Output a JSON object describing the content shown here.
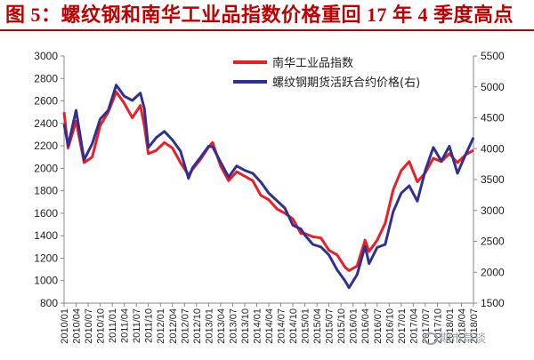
{
  "title": "图 5：螺纹钢和南华工业品指数价格重回 17 年 4 季度高点",
  "watermark": "期市草谈",
  "colors": {
    "title": "#c00000",
    "series_red": "#ee1c25",
    "series_blue": "#2e3192",
    "axis": "#888888"
  },
  "chart_data": {
    "type": "line",
    "title": "",
    "xlabel": "",
    "ylabel": "",
    "legend_position": "top-center",
    "grid": false,
    "x_ticks": [
      "2010/01",
      "2010/04",
      "2010/07",
      "2010/10",
      "2011/01",
      "2011/04",
      "2011/07",
      "2011/10",
      "2012/01",
      "2012/04",
      "2012/07",
      "2012/10",
      "2013/01",
      "2013/04",
      "2013/07",
      "2013/10",
      "2014/01",
      "2014/04",
      "2014/07",
      "2014/10",
      "2015/01",
      "2015/04",
      "2015/07",
      "2015/10",
      "2016/01",
      "2016/04",
      "2016/07",
      "2016/10",
      "2017/01",
      "2017/04",
      "2017/07",
      "2017/10",
      "2018/01",
      "2018/04",
      "2018/07"
    ],
    "y_left_ticks": [
      "3000",
      "2800",
      "2600",
      "2400",
      "2200",
      "2000",
      "1800",
      "1600",
      "1400",
      "1200",
      "1000",
      "800"
    ],
    "y_right_ticks": [
      "5500",
      "5000",
      "4500",
      "4000",
      "3500",
      "3000",
      "2500",
      "2000",
      "1500"
    ],
    "y_left_range": [
      800,
      3000
    ],
    "y_right_range": [
      1500,
      5500
    ],
    "series": [
      {
        "name": "南华工业品指数",
        "axis": "left",
        "color": "#ee1c25",
        "points": [
          [
            "2010/01",
            2500
          ],
          [
            "2010/02",
            2180
          ],
          [
            "2010/04",
            2420
          ],
          [
            "2010/06",
            2050
          ],
          [
            "2010/08",
            2100
          ],
          [
            "2010/10",
            2380
          ],
          [
            "2010/12",
            2500
          ],
          [
            "2011/02",
            2680
          ],
          [
            "2011/04",
            2580
          ],
          [
            "2011/06",
            2450
          ],
          [
            "2011/08",
            2560
          ],
          [
            "2011/09",
            2380
          ],
          [
            "2011/10",
            2130
          ],
          [
            "2011/12",
            2160
          ],
          [
            "2012/02",
            2230
          ],
          [
            "2012/04",
            2180
          ],
          [
            "2012/06",
            2050
          ],
          [
            "2012/08",
            1940
          ],
          [
            "2012/09",
            1990
          ],
          [
            "2012/11",
            2080
          ],
          [
            "2013/01",
            2190
          ],
          [
            "2013/02",
            2230
          ],
          [
            "2013/04",
            2020
          ],
          [
            "2013/06",
            1890
          ],
          [
            "2013/08",
            1970
          ],
          [
            "2013/10",
            1930
          ],
          [
            "2013/12",
            1890
          ],
          [
            "2014/02",
            1760
          ],
          [
            "2014/04",
            1720
          ],
          [
            "2014/06",
            1640
          ],
          [
            "2014/08",
            1600
          ],
          [
            "2014/10",
            1550
          ],
          [
            "2014/12",
            1420
          ],
          [
            "2015/01",
            1420
          ],
          [
            "2015/03",
            1390
          ],
          [
            "2015/05",
            1380
          ],
          [
            "2015/07",
            1270
          ],
          [
            "2015/09",
            1230
          ],
          [
            "2015/11",
            1120
          ],
          [
            "2015/12",
            1090
          ],
          [
            "2016/02",
            1130
          ],
          [
            "2016/04",
            1360
          ],
          [
            "2016/05",
            1260
          ],
          [
            "2016/07",
            1360
          ],
          [
            "2016/09",
            1510
          ],
          [
            "2016/11",
            1810
          ],
          [
            "2017/01",
            1980
          ],
          [
            "2017/03",
            2060
          ],
          [
            "2017/05",
            1880
          ],
          [
            "2017/07",
            1960
          ],
          [
            "2017/09",
            2090
          ],
          [
            "2017/11",
            2060
          ],
          [
            "2018/01",
            2130
          ],
          [
            "2018/03",
            2050
          ],
          [
            "2018/05",
            2120
          ],
          [
            "2018/07",
            2160
          ]
        ]
      },
      {
        "name": "螺纹钢期货活跃合约价格(右)",
        "axis": "right",
        "color": "#2e3192",
        "points": [
          [
            "2010/01",
            4400
          ],
          [
            "2010/02",
            4050
          ],
          [
            "2010/04",
            4620
          ],
          [
            "2010/06",
            3820
          ],
          [
            "2010/08",
            4080
          ],
          [
            "2010/10",
            4480
          ],
          [
            "2010/12",
            4620
          ],
          [
            "2011/02",
            5030
          ],
          [
            "2011/04",
            4850
          ],
          [
            "2011/06",
            4780
          ],
          [
            "2011/08",
            4900
          ],
          [
            "2011/09",
            4650
          ],
          [
            "2011/10",
            4020
          ],
          [
            "2011/12",
            4180
          ],
          [
            "2012/02",
            4280
          ],
          [
            "2012/04",
            4140
          ],
          [
            "2012/06",
            3960
          ],
          [
            "2012/08",
            3520
          ],
          [
            "2012/09",
            3690
          ],
          [
            "2012/11",
            3860
          ],
          [
            "2013/01",
            4040
          ],
          [
            "2013/02",
            4030
          ],
          [
            "2013/04",
            3780
          ],
          [
            "2013/06",
            3540
          ],
          [
            "2013/08",
            3720
          ],
          [
            "2013/10",
            3650
          ],
          [
            "2013/12",
            3600
          ],
          [
            "2014/02",
            3460
          ],
          [
            "2014/04",
            3280
          ],
          [
            "2014/06",
            3160
          ],
          [
            "2014/08",
            3040
          ],
          [
            "2014/10",
            2760
          ],
          [
            "2014/12",
            2700
          ],
          [
            "2015/01",
            2600
          ],
          [
            "2015/03",
            2450
          ],
          [
            "2015/05",
            2410
          ],
          [
            "2015/07",
            2280
          ],
          [
            "2015/09",
            2040
          ],
          [
            "2015/11",
            1860
          ],
          [
            "2015/12",
            1750
          ],
          [
            "2016/02",
            1960
          ],
          [
            "2016/04",
            2420
          ],
          [
            "2016/05",
            2140
          ],
          [
            "2016/07",
            2400
          ],
          [
            "2016/09",
            2450
          ],
          [
            "2016/11",
            2980
          ],
          [
            "2017/01",
            3280
          ],
          [
            "2017/03",
            3400
          ],
          [
            "2017/05",
            3150
          ],
          [
            "2017/07",
            3650
          ],
          [
            "2017/09",
            4020
          ],
          [
            "2017/11",
            3800
          ],
          [
            "2018/01",
            4040
          ],
          [
            "2018/03",
            3600
          ],
          [
            "2018/05",
            3900
          ],
          [
            "2018/07",
            4180
          ]
        ]
      }
    ]
  }
}
